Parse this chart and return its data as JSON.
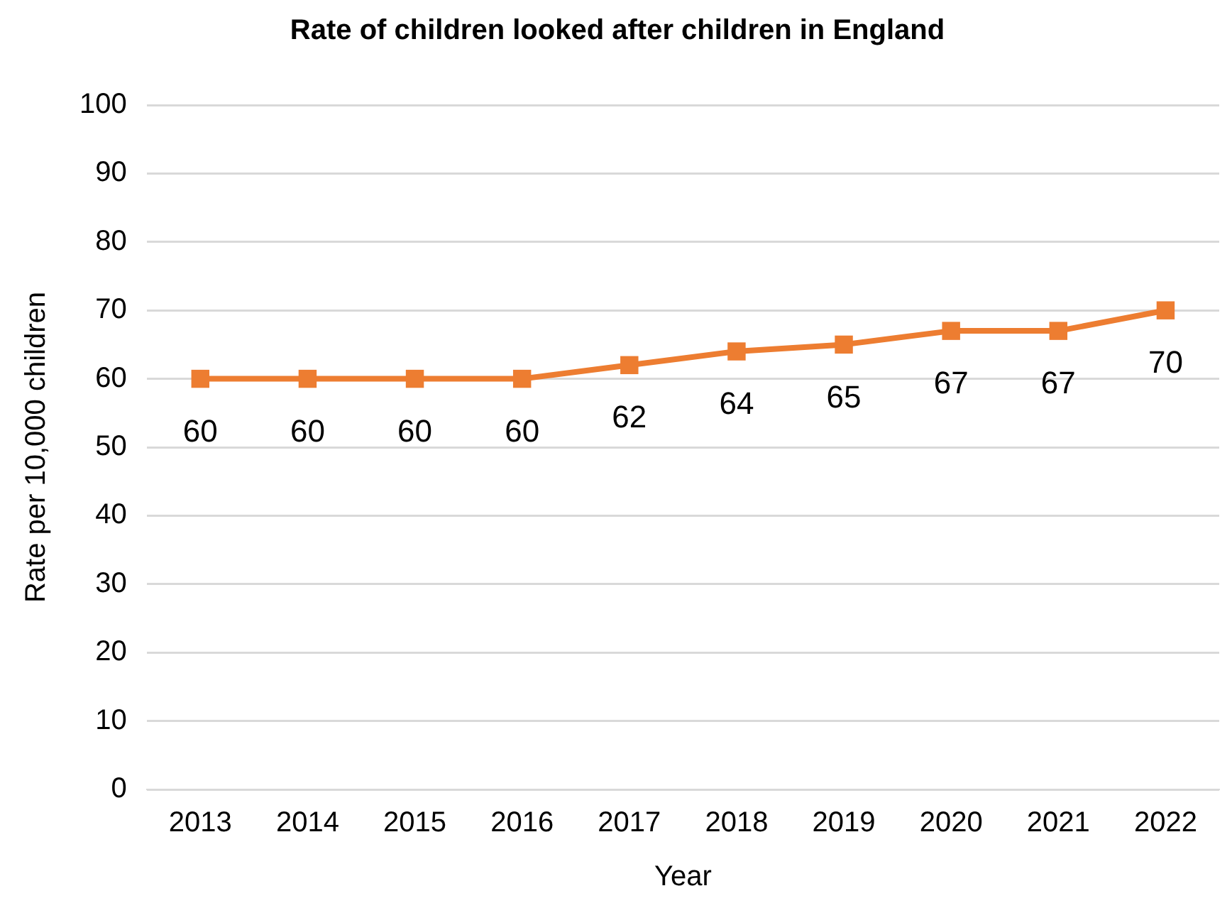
{
  "chart_data": {
    "type": "line",
    "title": "Rate of children looked after children in England",
    "xlabel": "Year",
    "ylabel": "Rate per 10,000 children",
    "categories": [
      "2013",
      "2014",
      "2015",
      "2016",
      "2017",
      "2018",
      "2019",
      "2020",
      "2021",
      "2022"
    ],
    "series": [
      {
        "color": "#ed7d31",
        "values": [
          60,
          60,
          60,
          60,
          62,
          64,
          65,
          67,
          67,
          70
        ]
      }
    ],
    "ylim": [
      0,
      100
    ],
    "yticks": [
      0,
      10,
      20,
      30,
      40,
      50,
      60,
      70,
      80,
      90,
      100
    ],
    "grid": "y",
    "legend": false,
    "marker": "square",
    "line_style": "solid",
    "data_labels": true
  }
}
